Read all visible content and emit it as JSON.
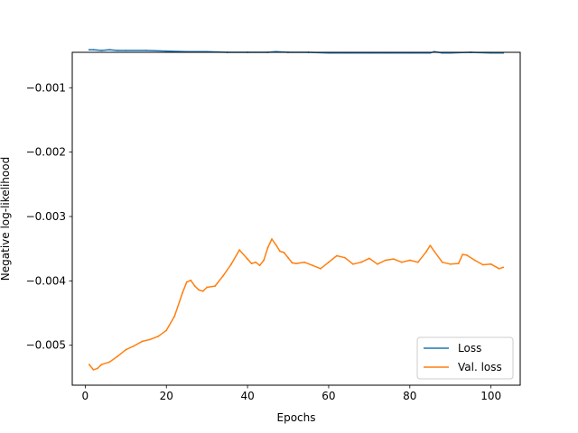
{
  "chart_data": {
    "type": "line",
    "title": "",
    "xlabel": "Epochs",
    "ylabel": "Negative log-likelihood",
    "xlim": [
      -3.2,
      107.2
    ],
    "ylim": [
      -0.00562,
      -0.00045
    ],
    "xticks": [
      0,
      20,
      40,
      60,
      80,
      100
    ],
    "yticks": [
      -0.005,
      -0.004,
      -0.003,
      -0.002,
      -0.001
    ],
    "ytick_labels": [
      "−0.005",
      "−0.004",
      "−0.003",
      "−0.002",
      "−0.001"
    ],
    "grid": false,
    "legend_position": "lower right",
    "series": [
      {
        "name": "Loss",
        "color": "#1f77b4",
        "x": [
          1,
          2,
          4,
          6,
          8,
          10,
          15,
          20,
          25,
          30,
          35,
          40,
          45,
          47,
          50,
          55,
          60,
          65,
          70,
          75,
          80,
          85,
          86,
          88,
          90,
          95,
          100,
          103
        ],
        "y": [
          -0.00041,
          -0.00041,
          -0.00042,
          -0.00041,
          -0.00042,
          -0.00042,
          -0.00042,
          -0.00043,
          -0.00044,
          -0.00044,
          -0.00045,
          -0.00045,
          -0.00045,
          -0.00044,
          -0.00045,
          -0.00045,
          -0.00046,
          -0.00046,
          -0.00046,
          -0.00046,
          -0.00046,
          -0.00046,
          -0.00044,
          -0.00046,
          -0.00046,
          -0.00045,
          -0.00046,
          -0.00046
        ]
      },
      {
        "name": "Val. loss",
        "color": "#ff7f0e",
        "x": [
          1,
          2,
          3,
          4,
          6,
          8,
          10,
          12,
          14,
          16,
          18,
          20,
          22,
          24,
          25,
          26,
          27,
          28,
          29,
          30,
          32,
          34,
          36,
          38,
          40,
          41,
          42,
          43,
          44,
          45,
          46,
          47,
          48,
          49,
          50,
          51,
          52,
          54,
          56,
          58,
          60,
          62,
          64,
          66,
          68,
          70,
          72,
          74,
          76,
          78,
          80,
          82,
          84,
          85,
          86,
          88,
          90,
          92,
          93,
          94,
          96,
          98,
          100,
          102,
          103
        ],
        "y": [
          -0.0053,
          -0.00538,
          -0.00536,
          -0.0053,
          -0.00526,
          -0.00517,
          -0.00507,
          -0.00501,
          -0.00494,
          -0.00491,
          -0.00486,
          -0.00477,
          -0.00455,
          -0.00418,
          -0.00402,
          -0.00399,
          -0.00408,
          -0.00414,
          -0.00416,
          -0.0041,
          -0.00408,
          -0.00392,
          -0.00374,
          -0.00352,
          -0.00366,
          -0.00373,
          -0.00371,
          -0.00376,
          -0.00368,
          -0.00348,
          -0.00335,
          -0.00344,
          -0.00354,
          -0.00356,
          -0.00364,
          -0.00372,
          -0.00373,
          -0.00371,
          -0.00376,
          -0.00381,
          -0.00371,
          -0.00361,
          -0.00364,
          -0.00374,
          -0.00371,
          -0.00365,
          -0.00374,
          -0.00368,
          -0.00366,
          -0.00371,
          -0.00368,
          -0.00371,
          -0.00355,
          -0.00345,
          -0.00354,
          -0.00371,
          -0.00374,
          -0.00373,
          -0.00359,
          -0.0036,
          -0.00368,
          -0.00375,
          -0.00374,
          -0.00381,
          -0.00379
        ]
      }
    ]
  }
}
